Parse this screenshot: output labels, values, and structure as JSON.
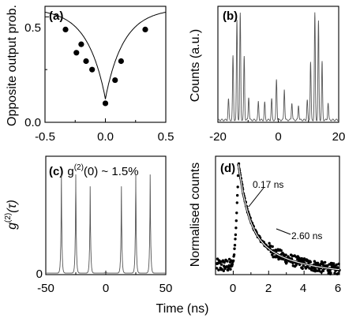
{
  "figure": {
    "shared_xlabel": "Time (ns)",
    "panels": {
      "a": {
        "label": "(a)",
        "ylabel": "Opposite output prob.",
        "xticks": [
          "-0.5",
          "0.0",
          "0.5"
        ],
        "yticks": [
          "0.0",
          "0.5"
        ]
      },
      "b": {
        "label": "(b)",
        "ylabel": "Counts (a.u.)",
        "xticks": [
          "-20",
          "0",
          "20"
        ]
      },
      "c": {
        "label": "(c)",
        "title_prefix": "g",
        "title_sup": "(2)",
        "title_suffix": "(0) ~ 1.5%",
        "ylabel_main": "g",
        "ylabel_sup": "(2)",
        "ylabel_tail": "(τ)",
        "xticks": [
          "-50",
          "0",
          "50"
        ],
        "yticks": [
          "0"
        ]
      },
      "d": {
        "label": "(d)",
        "ylabel": "Normalised counts",
        "xticks": [
          "0",
          "2",
          "4",
          "6"
        ],
        "annotation_fast": "0.17 ns",
        "annotation_slow": "2.60 ns"
      }
    }
  },
  "chart_data": [
    {
      "panel": "a",
      "type": "scatter",
      "xlabel": "",
      "ylabel": "Opposite output prob.",
      "xlim": [
        -0.5,
        0.5
      ],
      "ylim": [
        0.0,
        0.55
      ],
      "points": [
        [
          -0.33,
          0.44
        ],
        [
          -0.24,
          0.33
        ],
        [
          -0.2,
          0.37
        ],
        [
          -0.16,
          0.29
        ],
        [
          -0.11,
          0.25
        ],
        [
          0.0,
          0.09
        ],
        [
          0.08,
          0.2
        ],
        [
          0.13,
          0.29
        ],
        [
          0.33,
          0.44
        ]
      ],
      "fit": "solid line, dip centred at 0"
    },
    {
      "panel": "b",
      "type": "line",
      "xlabel": "",
      "ylabel": "Counts (a.u.)",
      "xlim": [
        -20,
        20
      ],
      "ylim": [
        0,
        1.0
      ],
      "baseline": 0.02,
      "peaks": [
        [
          -16.5,
          0.18
        ],
        [
          -15,
          0.55
        ],
        [
          -13.7,
          0.86
        ],
        [
          -12.6,
          0.92
        ],
        [
          -11.3,
          0.55
        ],
        [
          -9.8,
          0.2
        ],
        [
          -6.6,
          0.16
        ],
        [
          -4.5,
          0.15
        ],
        [
          -2.2,
          0.18
        ],
        [
          -0.6,
          0.35
        ],
        [
          2.0,
          0.27
        ],
        [
          4.5,
          0.15
        ],
        [
          6.7,
          0.13
        ],
        [
          9.6,
          0.17
        ],
        [
          10.7,
          0.5
        ],
        [
          12.1,
          0.92
        ],
        [
          13.3,
          0.85
        ],
        [
          14.5,
          0.5
        ],
        [
          16.5,
          0.15
        ]
      ]
    },
    {
      "panel": "c",
      "type": "line",
      "xlabel": "",
      "ylabel": "g(2)(τ)",
      "xlim": [
        -50,
        50
      ],
      "ylim": [
        0,
        1.2
      ],
      "baseline": 0.015,
      "peaks": [
        [
          -37,
          1.0
        ],
        [
          -25,
          1.0
        ],
        [
          -13,
          0.88
        ],
        [
          13,
          0.88
        ],
        [
          25,
          1.0
        ],
        [
          37,
          1.0
        ]
      ],
      "peak_at_zero": 0.015
    },
    {
      "panel": "d",
      "type": "scatter",
      "xlabel": "Time (ns)",
      "ylabel": "Normalised counts",
      "xlim": [
        -1,
        6
      ],
      "ylim": [
        0,
        1.05
      ],
      "peak_time": 0.3,
      "tau_fast_ns": 0.17,
      "tau_slow_ns": 2.6,
      "fit": "solid line, two-exponential decay"
    }
  ]
}
